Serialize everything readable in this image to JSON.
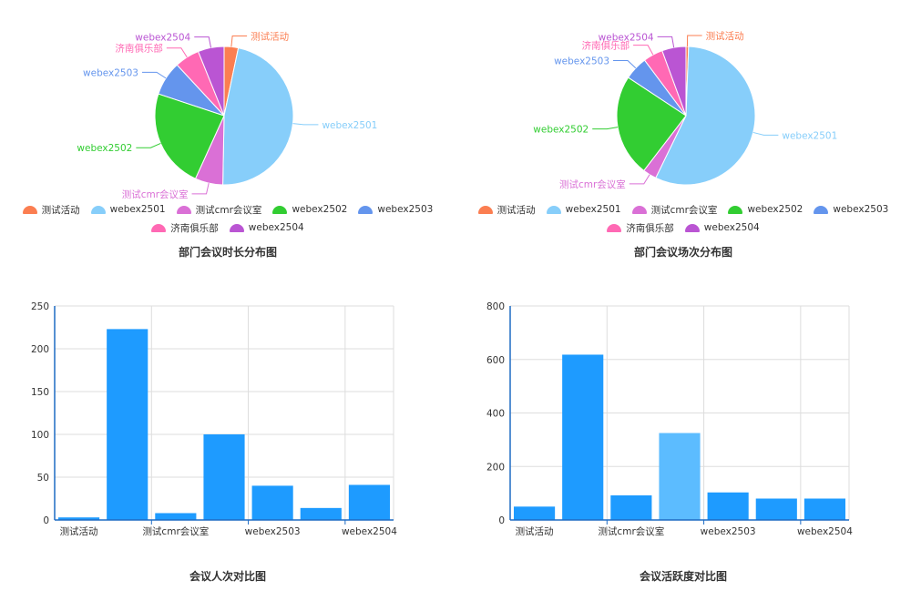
{
  "charts": [
    {
      "type": "pie",
      "title": "部门会议时长分布图",
      "slices": [
        {
          "label": "测试活动",
          "value": 3.3,
          "color": "#fb7e51"
        },
        {
          "label": "webex2501",
          "value": 47.0,
          "color": "#87cefa"
        },
        {
          "label": "测试cmr会议室",
          "value": 6.5,
          "color": "#da70d6"
        },
        {
          "label": "webex2502",
          "value": 23.3,
          "color": "#32cd32"
        },
        {
          "label": "webex2503",
          "value": 8.0,
          "color": "#6495ed"
        },
        {
          "label": "济南俱乐部",
          "value": 5.8,
          "color": "#ff69b4"
        },
        {
          "label": "webex2504",
          "value": 6.1,
          "color": "#ba55d3"
        }
      ]
    },
    {
      "type": "pie",
      "title": "部门会议场次分布图",
      "slices": [
        {
          "label": "测试活动",
          "value": 0.6,
          "color": "#fb7e51"
        },
        {
          "label": "webex2501",
          "value": 56.6,
          "color": "#87cefa"
        },
        {
          "label": "测试cmr会议室",
          "value": 3.2,
          "color": "#da70d6"
        },
        {
          "label": "webex2502",
          "value": 23.9,
          "color": "#32cd32"
        },
        {
          "label": "webex2503",
          "value": 5.5,
          "color": "#6495ed"
        },
        {
          "label": "济南俱乐部",
          "value": 4.6,
          "color": "#ff69b4"
        },
        {
          "label": "webex2504",
          "value": 5.6,
          "color": "#ba55d3"
        }
      ]
    },
    {
      "type": "bar",
      "title": "会议人次对比图",
      "categories": [
        "测试活动",
        "webex2501",
        "测试cmr会议室",
        "webex2502",
        "webex2503",
        "济南俱乐部",
        "webex2504"
      ],
      "shown_tick_labels": [
        "测试活动",
        "测试cmr会议室",
        "webex2503",
        "webex2504"
      ],
      "values": [
        3,
        223,
        8,
        100,
        40,
        14,
        41
      ],
      "ylim": [
        0,
        250
      ],
      "yticks": [
        0,
        50,
        100,
        150,
        200,
        250
      ],
      "bar_colors": [
        "#1e9bff",
        "#1e9bff",
        "#1e9bff",
        "#1e9bff",
        "#1e9bff",
        "#1e9bff",
        "#1e9bff"
      ],
      "grid": true
    },
    {
      "type": "bar",
      "title": "会议活跃度对比图",
      "categories": [
        "测试活动",
        "webex2501",
        "测试cmr会议室",
        "webex2502",
        "webex2503",
        "济南俱乐部",
        "webex2504"
      ],
      "shown_tick_labels": [
        "测试活动",
        "测试cmr会议室",
        "webex2503",
        "webex2504"
      ],
      "values": [
        50,
        618,
        92,
        325,
        103,
        80,
        80
      ],
      "ylim": [
        0,
        800
      ],
      "yticks": [
        0,
        200,
        400,
        600,
        800
      ],
      "bar_colors": [
        "#1e9bff",
        "#1e9bff",
        "#1e9bff",
        "#5cbcff",
        "#1e9bff",
        "#1e9bff",
        "#1e9bff"
      ],
      "grid": true
    }
  ],
  "chart_data": [
    {
      "type": "pie",
      "title": "部门会议时长分布图",
      "legend": [
        "测试活动",
        "webex2501",
        "测试cmr会议室",
        "webex2502",
        "webex2503",
        "济南俱乐部",
        "webex2504"
      ],
      "values": [
        3.3,
        47.0,
        6.5,
        23.3,
        8.0,
        5.8,
        6.1
      ],
      "legend_position": "bottom"
    },
    {
      "type": "pie",
      "title": "部门会议场次分布图",
      "legend": [
        "测试活动",
        "webex2501",
        "测试cmr会议室",
        "webex2502",
        "webex2503",
        "济南俱乐部",
        "webex2504"
      ],
      "values": [
        0.6,
        56.6,
        3.2,
        23.9,
        5.5,
        4.6,
        5.6
      ],
      "legend_position": "bottom"
    },
    {
      "type": "bar",
      "title": "会议人次对比图",
      "categories": [
        "测试活动",
        "webex2501",
        "测试cmr会议室",
        "webex2502",
        "webex2503",
        "济南俱乐部",
        "webex2504"
      ],
      "values": [
        3,
        223,
        8,
        100,
        40,
        14,
        41
      ],
      "ylim": [
        0,
        250
      ]
    },
    {
      "type": "bar",
      "title": "会议活跃度对比图",
      "categories": [
        "测试活动",
        "webex2501",
        "测试cmr会议室",
        "webex2502",
        "webex2503",
        "济南俱乐部",
        "webex2504"
      ],
      "values": [
        50,
        618,
        92,
        325,
        103,
        80,
        80
      ],
      "ylim": [
        0,
        800
      ]
    }
  ]
}
